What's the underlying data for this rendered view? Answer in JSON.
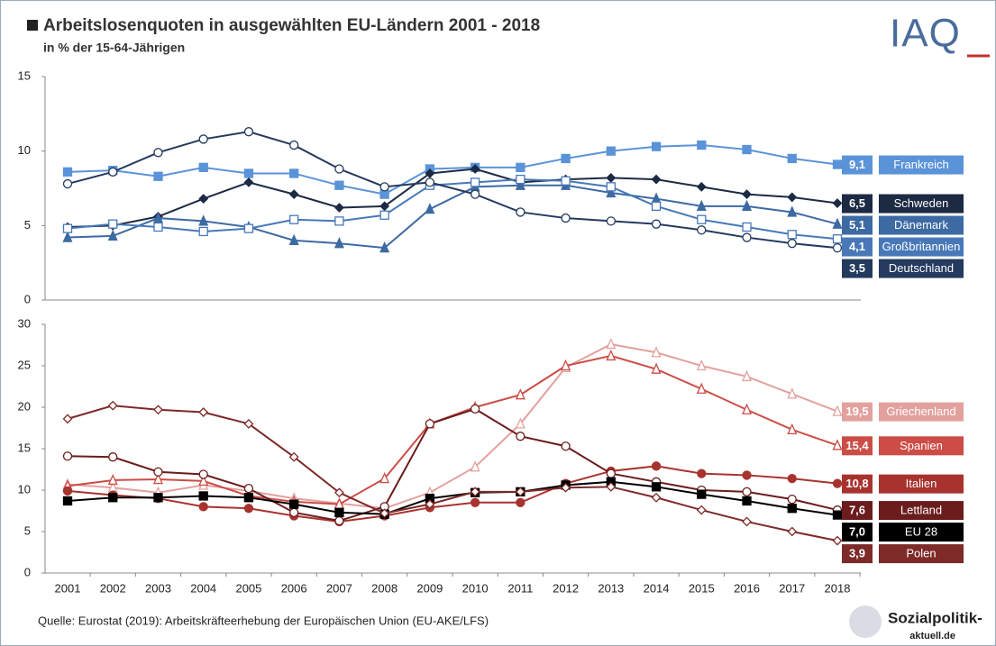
{
  "chart_data": [
    {
      "type": "line",
      "title": "Arbeitslosenquoten in ausgewählten EU-Ländern 2001 - 2018",
      "subtitle": "in % der 15-64-Jährigen",
      "ylim": [
        0,
        15
      ],
      "yticks": [
        0,
        5,
        10,
        15
      ],
      "series": [
        {
          "name": "Frankreich",
          "color": "#5b93d8",
          "marker": "square",
          "values": [
            8.6,
            8.7,
            8.3,
            8.9,
            8.5,
            8.5,
            7.7,
            7.1,
            8.8,
            8.9,
            8.9,
            9.5,
            10.0,
            10.3,
            10.4,
            10.1,
            9.5,
            9.1
          ],
          "value_labels": [
            null,
            null,
            null,
            null,
            null,
            null,
            null,
            null,
            null,
            null,
            null,
            null,
            null,
            null,
            null,
            null,
            null,
            "9,1"
          ]
        },
        {
          "name": "Schweden",
          "color": "#1c2a44",
          "marker": "diamond",
          "values": [
            4.9,
            5.0,
            5.6,
            6.8,
            7.9,
            7.1,
            6.2,
            6.3,
            8.5,
            8.8,
            7.9,
            8.1,
            8.2,
            8.1,
            7.6,
            7.1,
            6.9,
            6.5
          ],
          "value_labels": [
            null,
            null,
            null,
            null,
            null,
            null,
            null,
            null,
            null,
            null,
            null,
            null,
            null,
            null,
            null,
            null,
            null,
            "6,5"
          ]
        },
        {
          "name": "Dänemark",
          "color": "#3d6aa3",
          "marker": "triangle",
          "values": [
            4.2,
            4.3,
            5.5,
            5.3,
            4.9,
            4.0,
            3.8,
            3.5,
            6.1,
            7.6,
            7.7,
            7.7,
            7.2,
            6.8,
            6.3,
            6.3,
            5.9,
            5.1
          ],
          "value_labels": [
            null,
            null,
            null,
            null,
            null,
            null,
            null,
            null,
            null,
            null,
            null,
            null,
            null,
            null,
            null,
            null,
            null,
            "5,1"
          ]
        },
        {
          "name": "Großbritannien",
          "color": "#4878b8",
          "marker": "open-square",
          "values": [
            4.8,
            5.1,
            4.9,
            4.6,
            4.8,
            5.4,
            5.3,
            5.7,
            7.7,
            7.9,
            8.1,
            8.0,
            7.6,
            6.3,
            5.4,
            4.9,
            4.4,
            4.1
          ],
          "value_labels": [
            null,
            null,
            null,
            null,
            null,
            null,
            null,
            null,
            null,
            null,
            null,
            null,
            null,
            null,
            null,
            null,
            null,
            "4,1"
          ]
        },
        {
          "name": "Deutschland",
          "color": "#243a5e",
          "marker": "open-circle",
          "values": [
            7.8,
            8.6,
            9.9,
            10.8,
            11.3,
            10.4,
            8.8,
            7.6,
            7.9,
            7.1,
            5.9,
            5.5,
            5.3,
            5.1,
            4.7,
            4.2,
            3.8,
            3.5
          ],
          "value_labels": [
            null,
            null,
            null,
            null,
            null,
            null,
            null,
            null,
            null,
            null,
            null,
            null,
            null,
            null,
            null,
            null,
            null,
            "3,5"
          ]
        }
      ]
    },
    {
      "type": "line",
      "categories": [
        "2001",
        "2002",
        "2003",
        "2004",
        "2005",
        "2006",
        "2007",
        "2008",
        "2009",
        "2010",
        "2011",
        "2012",
        "2013",
        "2014",
        "2015",
        "2016",
        "2017",
        "2018"
      ],
      "ylim": [
        0,
        30
      ],
      "yticks": [
        0,
        5,
        10,
        15,
        20,
        25,
        30
      ],
      "series": [
        {
          "name": "Griechenland",
          "color": "#e3a19e",
          "marker": "open-triangle",
          "values": [
            10.7,
            10.3,
            9.7,
            10.6,
            9.9,
            9.0,
            8.4,
            7.8,
            9.7,
            12.8,
            18.0,
            24.8,
            27.6,
            26.6,
            25.0,
            23.7,
            21.6,
            19.5
          ],
          "value_labels": [
            null,
            null,
            null,
            null,
            null,
            null,
            null,
            null,
            null,
            null,
            null,
            null,
            null,
            null,
            null,
            null,
            null,
            "19,5"
          ]
        },
        {
          "name": "Spanien",
          "color": "#cc4c46",
          "marker": "open-triangle",
          "values": [
            10.5,
            11.2,
            11.3,
            11.1,
            9.3,
            8.6,
            8.3,
            11.4,
            18.0,
            20.0,
            21.5,
            25.0,
            26.2,
            24.6,
            22.2,
            19.7,
            17.3,
            15.4
          ],
          "value_labels": [
            null,
            null,
            null,
            null,
            null,
            null,
            null,
            null,
            null,
            null,
            null,
            null,
            null,
            null,
            null,
            null,
            null,
            "15,4"
          ]
        },
        {
          "name": "Italien",
          "color": "#a8332e",
          "marker": "circle",
          "values": [
            9.9,
            9.4,
            9.0,
            8.0,
            7.8,
            6.9,
            6.2,
            6.9,
            7.9,
            8.5,
            8.5,
            10.8,
            12.3,
            12.9,
            12.0,
            11.8,
            11.4,
            10.8
          ],
          "value_labels": [
            null,
            null,
            null,
            null,
            null,
            null,
            null,
            null,
            null,
            null,
            null,
            null,
            null,
            null,
            null,
            null,
            null,
            "10,8"
          ]
        },
        {
          "name": "Lettland",
          "color": "#6b1c1c",
          "marker": "open-circle",
          "values": [
            14.1,
            14.0,
            12.2,
            11.9,
            10.2,
            7.3,
            6.3,
            8.0,
            18.0,
            19.8,
            16.5,
            15.3,
            12.0,
            11.0,
            10.0,
            9.8,
            8.9,
            7.6
          ],
          "value_labels": [
            null,
            null,
            null,
            null,
            null,
            null,
            null,
            null,
            null,
            null,
            null,
            null,
            null,
            null,
            null,
            null,
            null,
            "7,6"
          ]
        },
        {
          "name": "EU 28",
          "color": "#000000",
          "marker": "square",
          "values": [
            8.7,
            9.1,
            9.1,
            9.3,
            9.1,
            8.3,
            7.3,
            7.1,
            9.0,
            9.7,
            9.8,
            10.6,
            11.0,
            10.4,
            9.5,
            8.7,
            7.8,
            7.0
          ],
          "value_labels": [
            null,
            null,
            null,
            null,
            null,
            null,
            null,
            null,
            null,
            null,
            null,
            null,
            null,
            null,
            null,
            null,
            null,
            "7,0"
          ]
        },
        {
          "name": "Polen",
          "color": "#7d2a28",
          "marker": "open-diamond",
          "values": [
            18.6,
            20.2,
            19.7,
            19.4,
            18.0,
            14.0,
            9.7,
            7.2,
            8.3,
            9.8,
            9.8,
            10.3,
            10.4,
            9.1,
            7.6,
            6.2,
            5.0,
            3.9
          ],
          "value_labels": [
            null,
            null,
            null,
            null,
            null,
            null,
            null,
            null,
            null,
            null,
            null,
            null,
            null,
            null,
            null,
            null,
            null,
            "3,9"
          ]
        }
      ]
    }
  ],
  "logo": "IAQ",
  "source": "Quelle: Eurostat (2019): Arbeitskräfteerhebung der Europäischen Union (EU-AKE/LFS)",
  "footer_logo": {
    "title": "Sozialpolitik-",
    "subtitle": "aktuell.de"
  }
}
